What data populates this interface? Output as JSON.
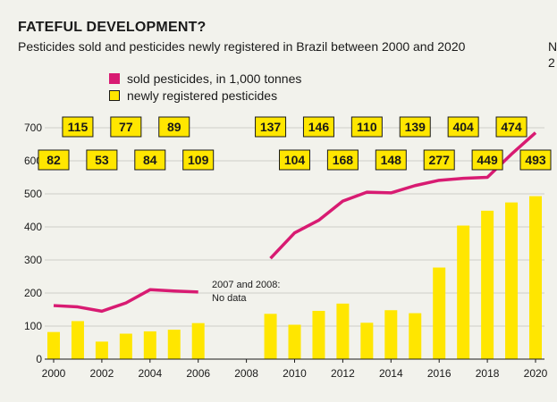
{
  "title": "FATEFUL DEVELOPMENT?",
  "subtitle": "Pesticides sold and pesticides newly registered in Brazil between 2000 and 2020",
  "cut_text_line1": "N",
  "cut_text_line2": "2",
  "colors": {
    "sold": "#d81b72",
    "registered": "#ffe600",
    "label_border": "#1a1a1a",
    "grid": "#cfcfc8",
    "background": "#f2f2ec"
  },
  "chart_data": {
    "type": "bar+line",
    "xlabel": "",
    "ylabel": "",
    "ylim": [
      0,
      700
    ],
    "yticks": [
      0,
      100,
      200,
      300,
      400,
      500,
      600,
      700
    ],
    "xticks": [
      2000,
      2002,
      2004,
      2006,
      2008,
      2010,
      2012,
      2014,
      2016,
      2018,
      2020
    ],
    "legend": {
      "sold": "sold pesticides, in 1,000 tonnes",
      "registered": "newly registered pesticides"
    },
    "annotation": {
      "year": 2007.5,
      "value": 120,
      "line1": "2007 and 2008:",
      "line2": "No data"
    },
    "registered": [
      {
        "year": 2000,
        "value": 82
      },
      {
        "year": 2001,
        "value": 115
      },
      {
        "year": 2002,
        "value": 53
      },
      {
        "year": 2003,
        "value": 77
      },
      {
        "year": 2004,
        "value": 84
      },
      {
        "year": 2005,
        "value": 89
      },
      {
        "year": 2006,
        "value": 109
      },
      {
        "year": 2009,
        "value": 137
      },
      {
        "year": 2010,
        "value": 104
      },
      {
        "year": 2011,
        "value": 146
      },
      {
        "year": 2012,
        "value": 168
      },
      {
        "year": 2013,
        "value": 110
      },
      {
        "year": 2014,
        "value": 148
      },
      {
        "year": 2015,
        "value": 139
      },
      {
        "year": 2016,
        "value": 277
      },
      {
        "year": 2017,
        "value": 404
      },
      {
        "year": 2018,
        "value": 449
      },
      {
        "year": 2019,
        "value": 474
      },
      {
        "year": 2020,
        "value": 493
      }
    ],
    "sold_segments": [
      [
        {
          "year": 2000,
          "value": 162
        },
        {
          "year": 2001,
          "value": 158
        },
        {
          "year": 2002,
          "value": 145
        },
        {
          "year": 2003,
          "value": 170
        },
        {
          "year": 2004,
          "value": 210
        },
        {
          "year": 2005,
          "value": 206
        },
        {
          "year": 2006,
          "value": 203
        }
      ],
      [
        {
          "year": 2009,
          "value": 305
        },
        {
          "year": 2010,
          "value": 382
        },
        {
          "year": 2011,
          "value": 420
        },
        {
          "year": 2012,
          "value": 478
        },
        {
          "year": 2013,
          "value": 505
        },
        {
          "year": 2014,
          "value": 503
        },
        {
          "year": 2015,
          "value": 525
        },
        {
          "year": 2016,
          "value": 541
        },
        {
          "year": 2017,
          "value": 547
        },
        {
          "year": 2018,
          "value": 550
        },
        {
          "year": 2019,
          "value": 620
        },
        {
          "year": 2020,
          "value": 685
        }
      ]
    ]
  }
}
